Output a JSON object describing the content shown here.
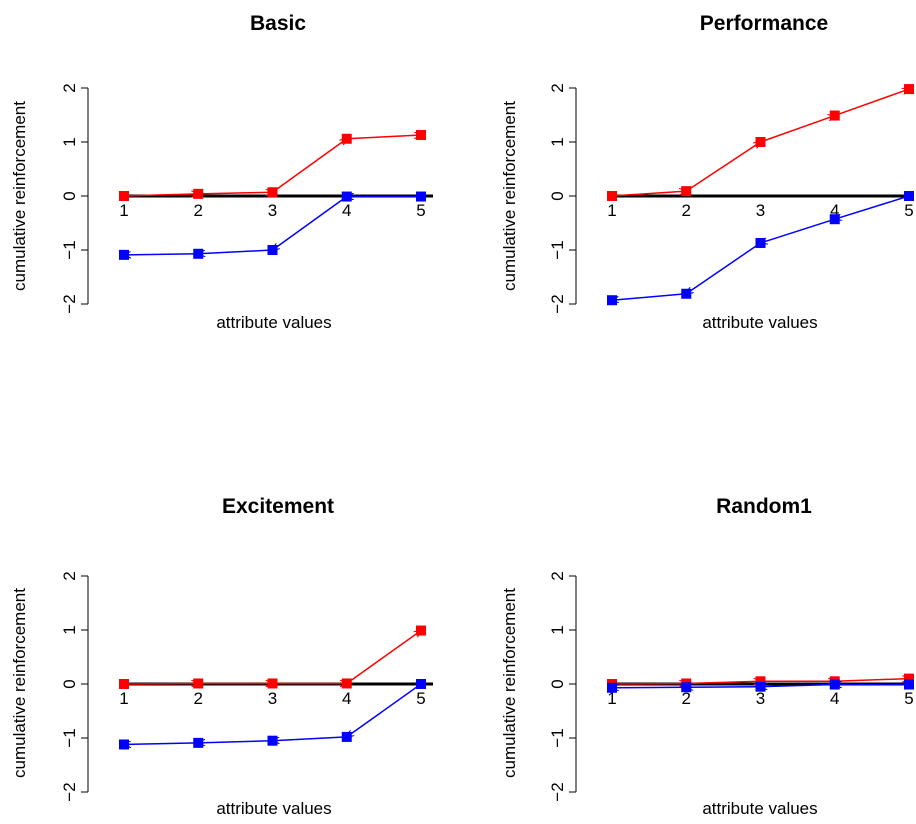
{
  "chart_data": [
    {
      "type": "line",
      "title": "Basic",
      "xlabel": "attribute values",
      "ylabel": "cumulative reinforcement",
      "x": [
        1,
        2,
        3,
        4,
        5
      ],
      "ylim": [
        -2,
        2
      ],
      "xlim": [
        1,
        5
      ],
      "y_ticks": [
        -2,
        -1,
        0,
        1,
        2
      ],
      "x_tick_labels": [
        "1",
        "2",
        "3",
        "4",
        "5"
      ],
      "series": [
        {
          "color": "#ff0000",
          "values": [
            0.0,
            0.04,
            0.07,
            1.06,
            1.13
          ],
          "arrow_direction": "increasing"
        },
        {
          "color": "#0000ff",
          "values": [
            -1.09,
            -1.07,
            -1.0,
            -0.01,
            -0.01
          ],
          "arrow_direction": "decreasing"
        }
      ]
    },
    {
      "type": "line",
      "title": "Performance",
      "xlabel": "attribute values",
      "ylabel": "cumulative reinforcement",
      "x": [
        1,
        2,
        3,
        4,
        5
      ],
      "ylim": [
        -2,
        2
      ],
      "xlim": [
        1,
        5
      ],
      "y_ticks": [
        -2,
        -1,
        0,
        1,
        2
      ],
      "x_tick_labels": [
        "1",
        "2",
        "3",
        "4",
        "5"
      ],
      "series": [
        {
          "color": "#ff0000",
          "values": [
            0.0,
            0.09,
            1.0,
            1.49,
            1.98
          ],
          "arrow_direction": "increasing"
        },
        {
          "color": "#0000ff",
          "values": [
            -1.93,
            -1.81,
            -0.87,
            -0.43,
            0.0
          ],
          "arrow_direction": "decreasing"
        }
      ]
    },
    {
      "type": "line",
      "title": "Excitement",
      "xlabel": "attribute values",
      "ylabel": "cumulative reinforcement",
      "x": [
        1,
        2,
        3,
        4,
        5
      ],
      "ylim": [
        -2,
        2
      ],
      "xlim": [
        1,
        5
      ],
      "y_ticks": [
        -2,
        -1,
        0,
        1,
        2
      ],
      "x_tick_labels": [
        "1",
        "2",
        "3",
        "4",
        "5"
      ],
      "series": [
        {
          "color": "#ff0000",
          "values": [
            0.0,
            0.01,
            0.01,
            0.01,
            0.99
          ],
          "arrow_direction": "increasing"
        },
        {
          "color": "#0000ff",
          "values": [
            -1.12,
            -1.09,
            -1.05,
            -0.98,
            0.0
          ],
          "arrow_direction": "decreasing"
        }
      ]
    },
    {
      "type": "line",
      "title": "Random1",
      "xlabel": "attribute values",
      "ylabel": "cumulative reinforcement",
      "x": [
        1,
        2,
        3,
        4,
        5
      ],
      "ylim": [
        -2,
        2
      ],
      "xlim": [
        1,
        5
      ],
      "y_ticks": [
        -2,
        -1,
        0,
        1,
        2
      ],
      "x_tick_labels": [
        "1",
        "2",
        "3",
        "4",
        "5"
      ],
      "series": [
        {
          "color": "#ff0000",
          "values": [
            0.0,
            0.01,
            0.05,
            0.05,
            0.1
          ],
          "arrow_direction": "increasing"
        },
        {
          "color": "#0000ff",
          "values": [
            -0.07,
            -0.06,
            -0.05,
            -0.01,
            -0.01
          ],
          "arrow_direction": "decreasing"
        }
      ]
    }
  ]
}
